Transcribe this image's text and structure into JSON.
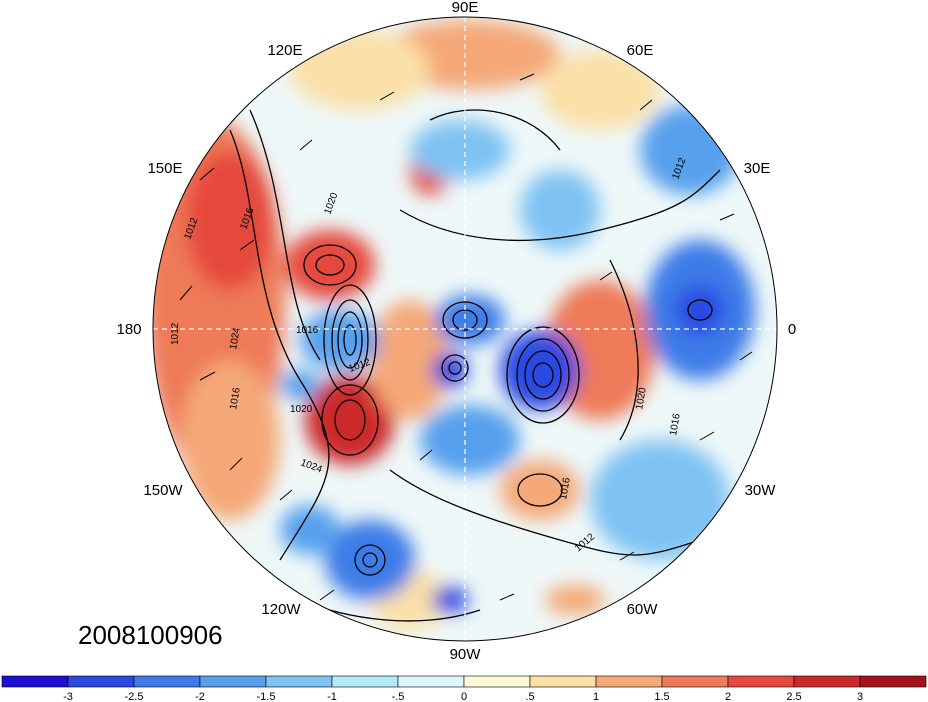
{
  "date_stamp": "2008100906",
  "longitude_labels": {
    "e90": "90E",
    "e120": "120E",
    "e60": "60E",
    "e150": "150E",
    "e30": "30E",
    "lon180": "180",
    "lon0": "0",
    "w150": "150W",
    "w30": "30W",
    "w120": "120W",
    "w60": "60W",
    "w90": "90W"
  },
  "contour_labels": [
    "1012",
    "1016",
    "1020",
    "1024",
    "1012",
    "1016",
    "1020",
    "1016",
    "1012",
    "1016",
    "1020",
    "1012",
    "1016",
    "1012",
    "1024"
  ],
  "colorbar": {
    "tick_labels": [
      "-3",
      "-2.5",
      "-2",
      "-1.5",
      "-1",
      "-.5",
      "0",
      ".5",
      "1",
      "1.5",
      "2",
      "2.5",
      "3"
    ],
    "colors": [
      "#1e10d0",
      "#2c49e2",
      "#3d7be8",
      "#57a0ee",
      "#7fc3f3",
      "#b4e9f8",
      "#dff6fb",
      "#fff8d6",
      "#fbe0a8",
      "#f5a878",
      "#ee7a58",
      "#e5483e",
      "#cc2a2a",
      "#a6121c"
    ]
  },
  "palette": {
    "ocean_neutral": "#eef8f8",
    "contour": "#000000"
  }
}
